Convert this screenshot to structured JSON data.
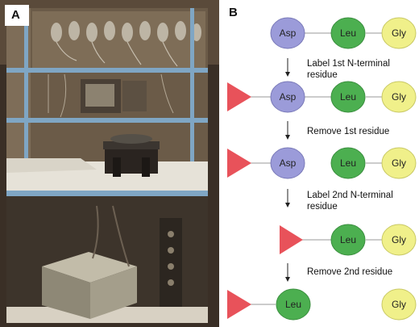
{
  "panels": {
    "a": {
      "label": "A"
    },
    "b": {
      "label": "B"
    }
  },
  "residues": {
    "asp": "Asp",
    "leu": "Leu",
    "gly": "Gly"
  },
  "steps": [
    {
      "text": "Label 1st N-terminal residue"
    },
    {
      "text": "Remove 1st residue"
    },
    {
      "text": "Label 2nd N-terminal residue"
    },
    {
      "text": "Remove 2nd residue"
    }
  ],
  "colors": {
    "asp": "#9b9bd9",
    "leu": "#4caf50",
    "gly": "#f0f08a",
    "label_marker": "#e8525a"
  }
}
